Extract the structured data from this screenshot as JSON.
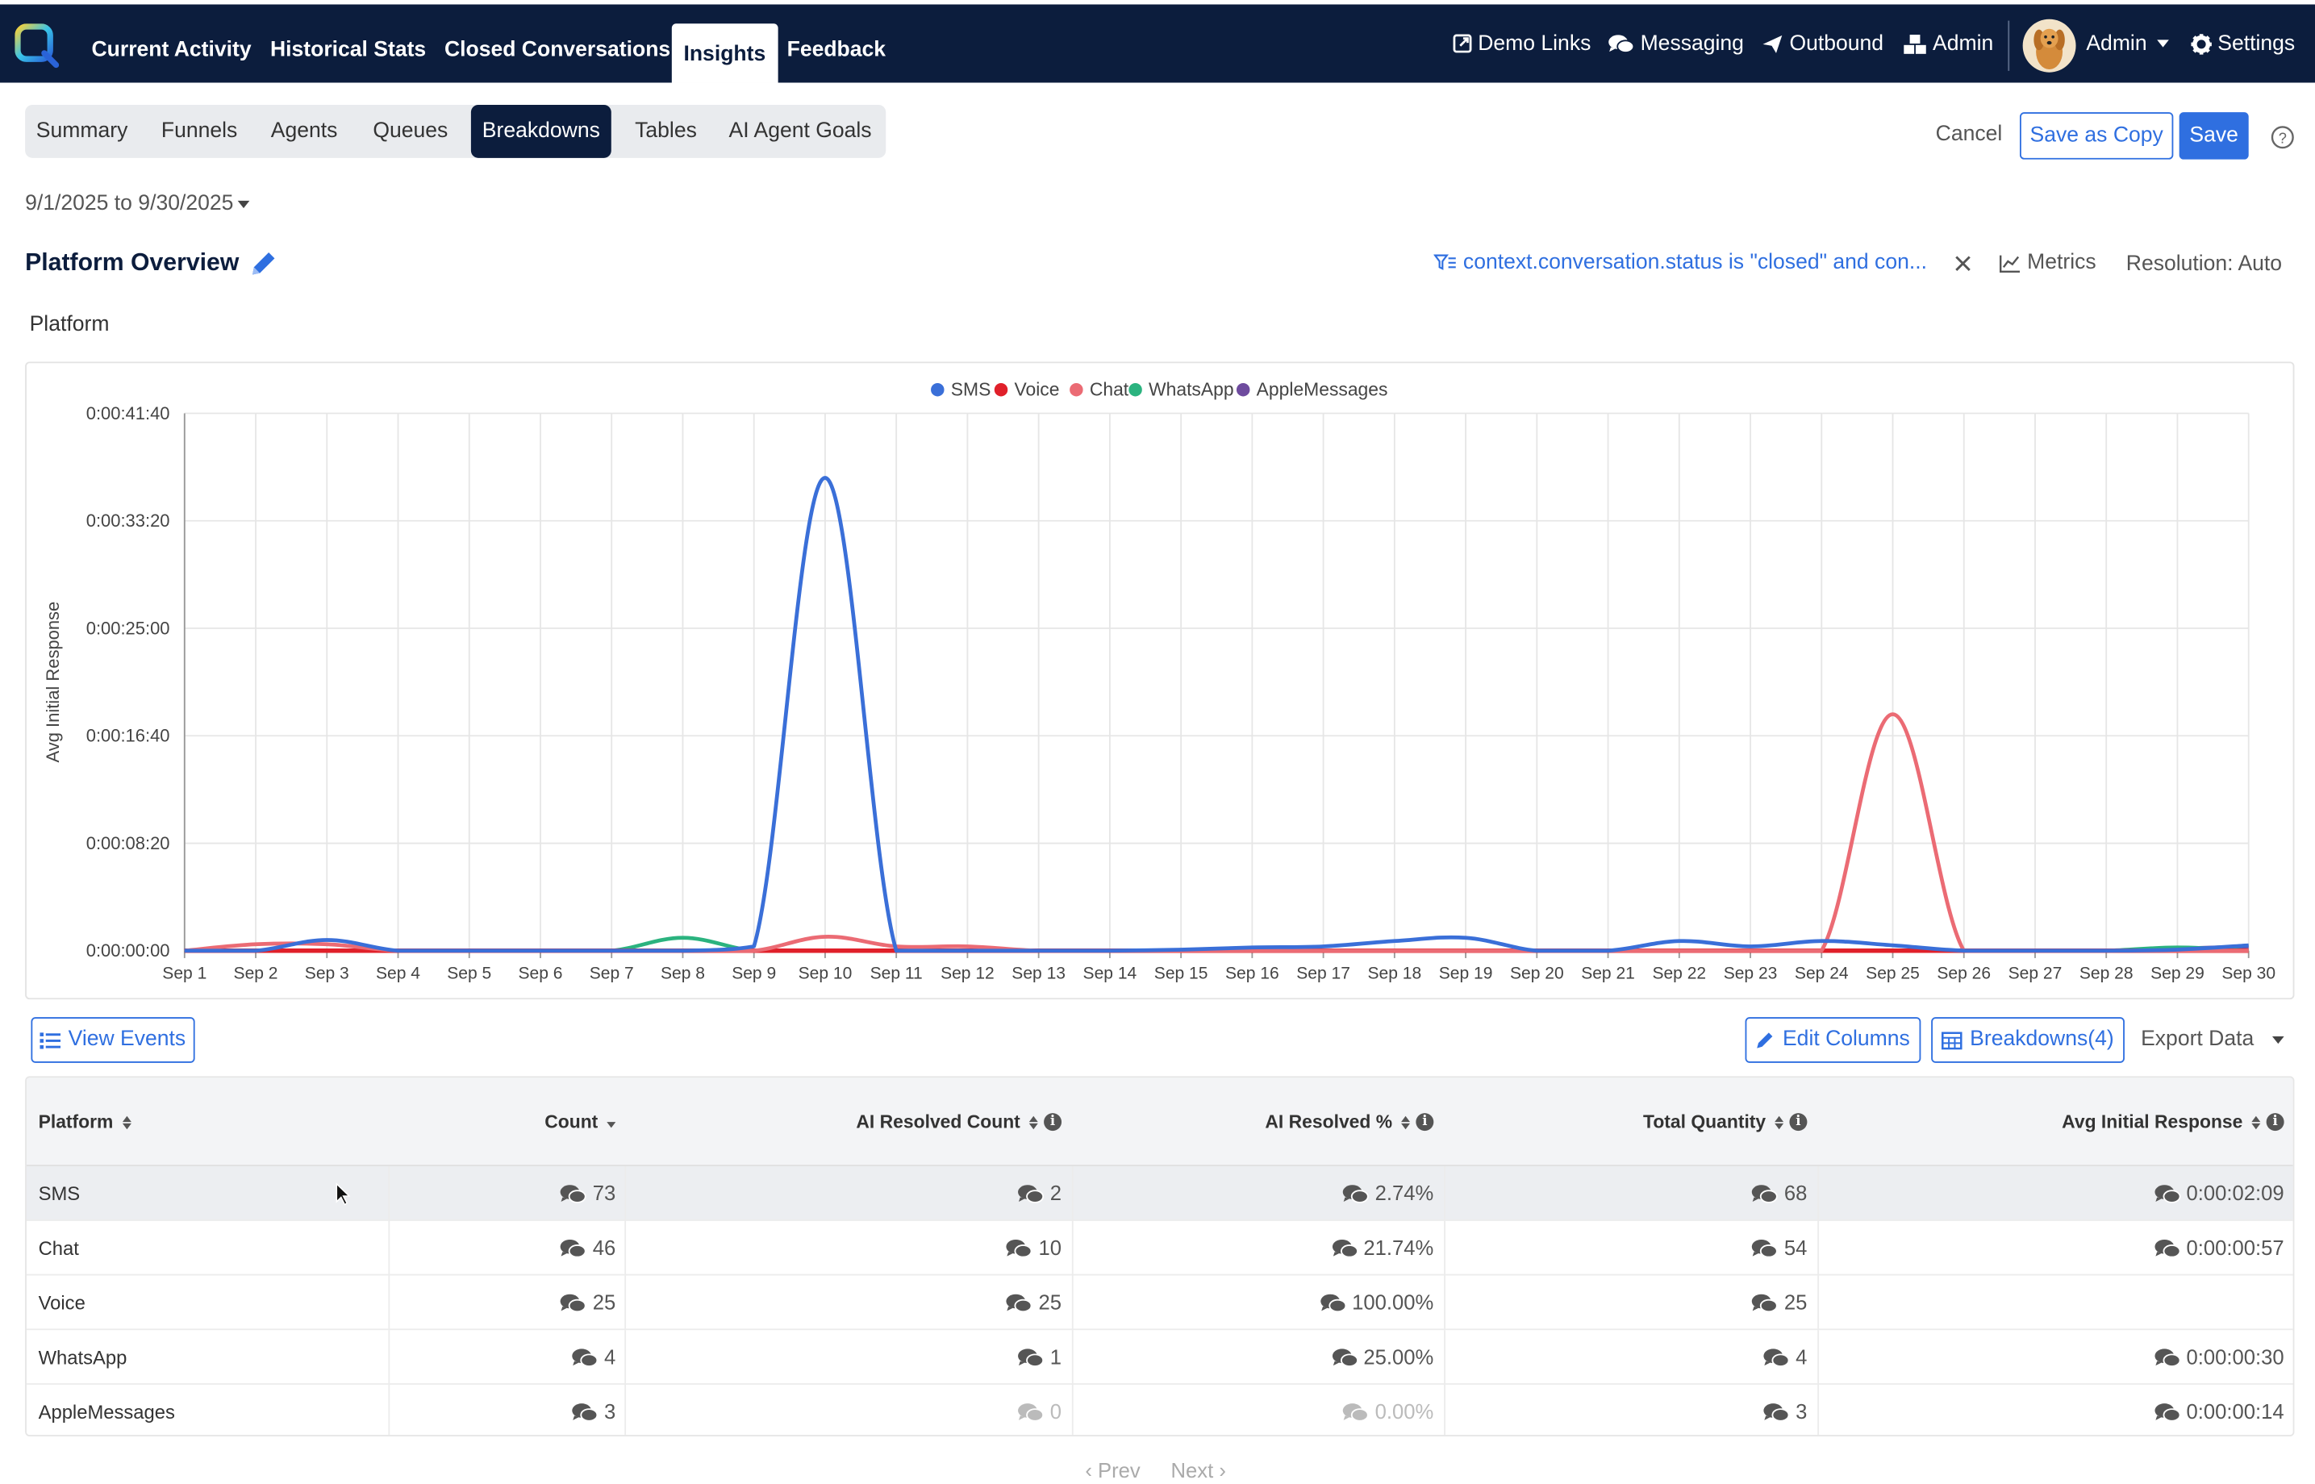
{
  "topnav": {
    "items": [
      {
        "label": "Current Activity"
      },
      {
        "label": "Historical Stats"
      },
      {
        "label": "Closed Conversations"
      },
      {
        "label": "Insights"
      },
      {
        "label": "Feedback"
      }
    ],
    "active": "Insights",
    "right": {
      "demo_links": "Demo Links",
      "messaging": "Messaging",
      "outbound": "Outbound",
      "admin": "Admin",
      "user": "Admin",
      "settings": "Settings"
    }
  },
  "subtabs": {
    "items": [
      {
        "label": "Summary"
      },
      {
        "label": "Funnels"
      },
      {
        "label": "Agents"
      },
      {
        "label": "Queues"
      },
      {
        "label": "Breakdowns"
      },
      {
        "label": "Tables"
      },
      {
        "label": "AI Agent Goals"
      }
    ],
    "active": "Breakdowns"
  },
  "actions": {
    "cancel": "Cancel",
    "save_copy": "Save as Copy",
    "save": "Save",
    "help": "?"
  },
  "date_range": "9/1/2025 to 9/30/2025",
  "report": {
    "title": "Platform Overview",
    "filter": "context.conversation.status is \"closed\" and con...",
    "metrics": "Metrics",
    "resolution": "Resolution: Auto"
  },
  "section_label": "Platform",
  "colors": {
    "SMS": "#3a6fd8",
    "Voice": "#e0202a",
    "Chat": "#eb6b74",
    "WhatsApp": "#2bb37f",
    "AppleMessages": "#6e4b9e",
    "accent": "#2f6fe0",
    "navy": "#0c1d3d"
  },
  "chart_data": {
    "type": "line",
    "ylabel": "Avg Initial Response",
    "y_ticks": [
      "0:00:00:00",
      "0:00:08:20",
      "0:00:16:40",
      "0:00:25:00",
      "0:00:33:20",
      "0:00:41:40"
    ],
    "y_range_seconds": [
      0,
      2500
    ],
    "legend_position": "top-center",
    "categories": [
      "Sep 1",
      "Sep 2",
      "Sep 3",
      "Sep 4",
      "Sep 5",
      "Sep 6",
      "Sep 7",
      "Sep 8",
      "Sep 9",
      "Sep 10",
      "Sep 11",
      "Sep 12",
      "Sep 13",
      "Sep 14",
      "Sep 15",
      "Sep 16",
      "Sep 17",
      "Sep 18",
      "Sep 19",
      "Sep 20",
      "Sep 21",
      "Sep 22",
      "Sep 23",
      "Sep 24",
      "Sep 25",
      "Sep 26",
      "Sep 27",
      "Sep 28",
      "Sep 29",
      "Sep 30"
    ],
    "series": [
      {
        "name": "SMS",
        "values": [
          0,
          0,
          50,
          0,
          0,
          0,
          0,
          0,
          20,
          2200,
          0,
          0,
          0,
          0,
          5,
          15,
          20,
          45,
          60,
          0,
          0,
          45,
          20,
          45,
          25,
          0,
          0,
          0,
          5,
          25
        ]
      },
      {
        "name": "Voice",
        "values": [
          0,
          0,
          0,
          0,
          0,
          0,
          0,
          0,
          0,
          0,
          0,
          0,
          0,
          0,
          0,
          0,
          0,
          0,
          0,
          0,
          0,
          0,
          0,
          0,
          0,
          0,
          0,
          0,
          0,
          0
        ]
      },
      {
        "name": "Chat",
        "values": [
          0,
          30,
          30,
          0,
          0,
          0,
          0,
          0,
          0,
          65,
          20,
          20,
          0,
          0,
          0,
          0,
          0,
          0,
          0,
          0,
          0,
          0,
          0,
          0,
          1100,
          0,
          0,
          0,
          0,
          0
        ]
      },
      {
        "name": "WhatsApp",
        "values": [
          0,
          0,
          0,
          0,
          0,
          0,
          0,
          60,
          0,
          0,
          0,
          0,
          0,
          0,
          0,
          0,
          0,
          0,
          0,
          0,
          0,
          0,
          0,
          0,
          0,
          0,
          0,
          0,
          15,
          0
        ]
      },
      {
        "name": "AppleMessages",
        "values": [
          0,
          0,
          0,
          0,
          0,
          0,
          0,
          0,
          0,
          0,
          0,
          0,
          0,
          0,
          0,
          0,
          0,
          0,
          0,
          0,
          0,
          0,
          0,
          0,
          0,
          0,
          0,
          0,
          10,
          20
        ]
      }
    ],
    "grid": true
  },
  "table_toolbar": {
    "view_events": "View Events",
    "edit_columns": "Edit Columns",
    "breakdowns": "Breakdowns(4)",
    "export": "Export Data"
  },
  "table": {
    "headers": [
      "Platform",
      "Count",
      "AI Resolved Count",
      "AI Resolved %",
      "Total Quantity",
      "Avg Initial Response"
    ],
    "rows": [
      [
        "SMS",
        "73",
        "2",
        "2.74%",
        "68",
        "0:00:02:09"
      ],
      [
        "Chat",
        "46",
        "10",
        "21.74%",
        "54",
        "0:00:00:57"
      ],
      [
        "Voice",
        "25",
        "25",
        "100.00%",
        "25",
        ""
      ],
      [
        "WhatsApp",
        "4",
        "1",
        "25.00%",
        "4",
        "0:00:00:30"
      ],
      [
        "AppleMessages",
        "3",
        "0",
        "0.00%",
        "3",
        "0:00:00:14"
      ]
    ]
  },
  "pager": {
    "prev": "Prev",
    "next": "Next"
  }
}
